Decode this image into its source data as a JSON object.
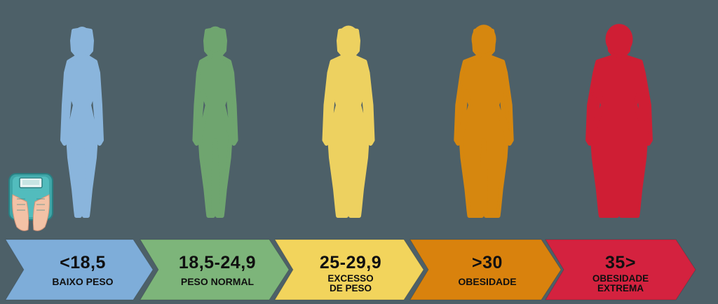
{
  "categories": [
    {
      "value": "<18,5",
      "label": [
        "BAIXO PESO"
      ],
      "color": "#7eadd9",
      "figure": "#8ab5dc"
    },
    {
      "value": "18,5-24,9",
      "label": [
        "PESO NORMAL"
      ],
      "color": "#7db57a",
      "figure": "#6fa56f"
    },
    {
      "value": "25-29,9",
      "label": [
        "EXCESSO",
        "DE PESO"
      ],
      "color": "#f2d45c",
      "figure": "#edd160"
    },
    {
      "value": ">30",
      "label": [
        "OBESIDADE"
      ],
      "color": "#d9820d",
      "figure": "#d6870f"
    },
    {
      "value": "35>",
      "label": [
        "OBESIDADE",
        "EXTREMA"
      ],
      "color": "#d4223f",
      "figure": "#cf1e34"
    }
  ],
  "icons": {
    "scale": "bathroom-scale-icon"
  }
}
